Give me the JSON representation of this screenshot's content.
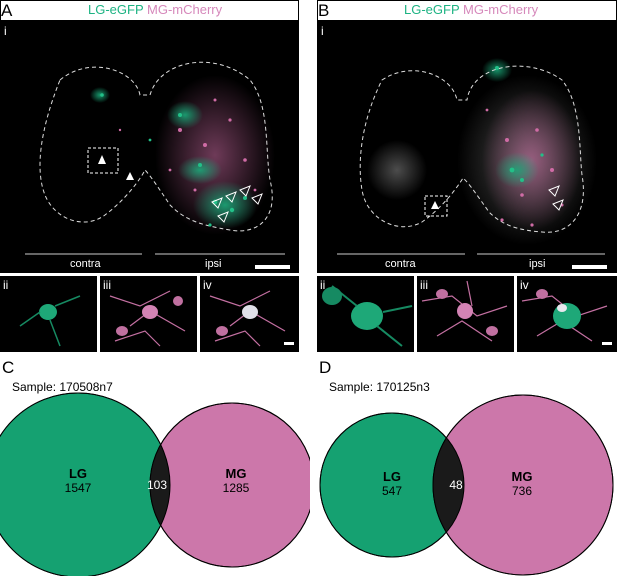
{
  "panels": {
    "A": {
      "letter": "A",
      "header_lg": "LG-eGFP",
      "header_mg": "MG-mCherry",
      "main_label": "i",
      "contra_label": "contra",
      "ipsi_label": "ipsi",
      "insets": [
        "ii",
        "iii",
        "iv"
      ]
    },
    "B": {
      "letter": "B",
      "header_lg": "LG-eGFP",
      "header_mg": "MG-mCherry",
      "main_label": "i",
      "contra_label": "contra",
      "ipsi_label": "ipsi",
      "insets": [
        "ii",
        "iii",
        "iv"
      ]
    },
    "C": {
      "letter": "C",
      "sample": "Sample: 170508n7",
      "lg_label": "LG",
      "lg_count": "1547",
      "overlap": "103",
      "mg_label": "MG",
      "mg_count": "1285"
    },
    "D": {
      "letter": "D",
      "sample": "Sample: 170125n3",
      "lg_label": "LG",
      "lg_count": "547",
      "overlap": "48",
      "mg_label": "MG",
      "mg_count": "736"
    }
  },
  "colors": {
    "lg": "#15a171",
    "mg": "#cc77aa",
    "overlap": "#1a1a1a",
    "lg_text": "#1db383",
    "mg_text": "#d688bb"
  }
}
